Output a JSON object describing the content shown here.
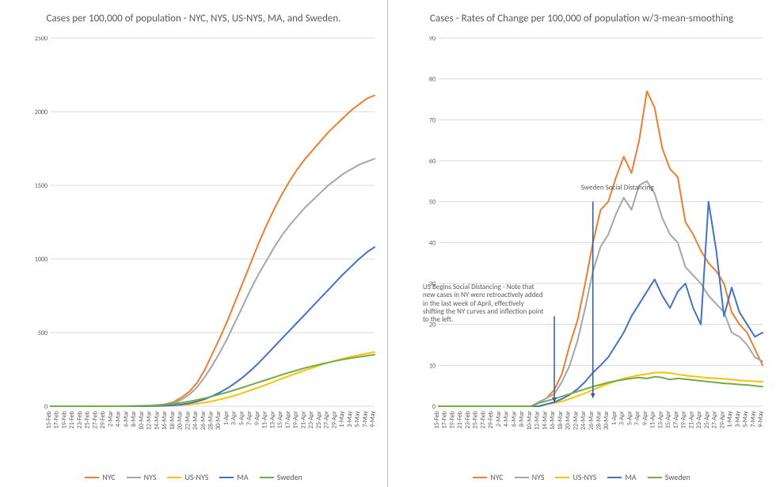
{
  "colors": {
    "NYC": "#ed7d31",
    "NYS": "#a6a6a6",
    "US-NYS": "#ffc000",
    "MA": "#4472c4",
    "Sweden": "#70ad47",
    "grid": "#d9d9d9",
    "text": "#595959",
    "bg": "#ffffff",
    "arrow": "#3b5b8f"
  },
  "legend_order": [
    "NYC",
    "NYS",
    "US-NYS",
    "MA",
    "Sweden"
  ],
  "dates": [
    "15-Feb",
    "17-Feb",
    "19-Feb",
    "21-Feb",
    "23-Feb",
    "25-Feb",
    "27-Feb",
    "29-Feb",
    "2-Mar",
    "4-Mar",
    "6-Mar",
    "8-Mar",
    "10-Mar",
    "12-Mar",
    "14-Mar",
    "16-Mar",
    "18-Mar",
    "20-Mar",
    "22-Mar",
    "24-Mar",
    "26-Mar",
    "28-Mar",
    "30-Mar",
    "1-Apr",
    "3-Apr",
    "5-Apr",
    "7-Apr",
    "9-Apr",
    "11-Apr",
    "13-Apr",
    "15-Apr",
    "17-Apr",
    "19-Apr",
    "21-Apr",
    "23-Apr",
    "25-Apr",
    "27-Apr",
    "29-Apr",
    "1-May",
    "3-May",
    "5-May",
    "7-May",
    "9-May"
  ],
  "left": {
    "title": "Cases per 100,000 of population - NYC, NYS, US-NYS, MA, and Sweden.",
    "ylim": [
      0,
      2500
    ],
    "ytick_step": 500,
    "series": {
      "NYC": [
        0,
        0,
        0,
        0,
        0,
        0,
        0,
        0,
        0,
        0,
        0,
        1,
        2,
        4,
        8,
        15,
        30,
        60,
        100,
        160,
        250,
        360,
        470,
        590,
        720,
        850,
        980,
        1110,
        1230,
        1340,
        1440,
        1530,
        1610,
        1680,
        1740,
        1800,
        1860,
        1910,
        1960,
        2010,
        2050,
        2090,
        2110
      ],
      "NYS": [
        0,
        0,
        0,
        0,
        0,
        0,
        0,
        0,
        0,
        0,
        0,
        0,
        1,
        3,
        6,
        12,
        22,
        45,
        80,
        130,
        200,
        280,
        370,
        470,
        580,
        690,
        800,
        900,
        990,
        1080,
        1160,
        1230,
        1290,
        1350,
        1400,
        1450,
        1500,
        1540,
        1580,
        1610,
        1640,
        1660,
        1680
      ],
      "US-NYS": [
        0,
        0,
        0,
        0,
        0,
        0,
        0,
        0,
        0,
        0,
        0,
        0,
        0,
        1,
        2,
        3,
        5,
        8,
        12,
        18,
        25,
        35,
        47,
        60,
        75,
        92,
        110,
        128,
        148,
        168,
        188,
        208,
        226,
        244,
        262,
        280,
        296,
        310,
        324,
        336,
        348,
        358,
        368
      ],
      "MA": [
        0,
        0,
        0,
        0,
        0,
        0,
        0,
        0,
        0,
        0,
        0,
        0,
        0,
        1,
        2,
        4,
        7,
        12,
        20,
        32,
        48,
        70,
        95,
        125,
        160,
        200,
        245,
        295,
        350,
        405,
        460,
        515,
        570,
        625,
        680,
        735,
        790,
        845,
        900,
        950,
        1000,
        1045,
        1080
      ],
      "Sweden": [
        0,
        0,
        0,
        0,
        0,
        0,
        0,
        0,
        0,
        0,
        1,
        2,
        3,
        5,
        8,
        12,
        17,
        24,
        33,
        43,
        55,
        68,
        82,
        97,
        113,
        129,
        146,
        163,
        180,
        197,
        214,
        230,
        245,
        260,
        273,
        285,
        297,
        308,
        318,
        327,
        335,
        343,
        350
      ]
    }
  },
  "right": {
    "title": "Cases - Rates of Change per 100,000 of population w/3-mean-smoothing",
    "ylim": [
      0,
      90
    ],
    "ytick_step": 10,
    "series": {
      "NYC": [
        0,
        0,
        0,
        0,
        0,
        0,
        0,
        0,
        0,
        0,
        0,
        0,
        0,
        1,
        2,
        4,
        8,
        15,
        21,
        30,
        40,
        48,
        50,
        56,
        61,
        57,
        65,
        77,
        73,
        63,
        58,
        56,
        45,
        42,
        38,
        35,
        33,
        30,
        23,
        20,
        18,
        14,
        10
      ],
      "NYS": [
        0,
        0,
        0,
        0,
        0,
        0,
        0,
        0,
        0,
        0,
        0,
        0,
        0,
        1,
        2,
        3,
        6,
        10,
        16,
        24,
        33,
        39,
        42,
        47,
        51,
        48,
        54,
        55,
        52,
        46,
        42,
        40,
        34,
        32,
        30,
        27,
        25,
        23,
        18,
        17,
        15,
        12,
        11
      ],
      "US-NYS": [
        0,
        0,
        0,
        0,
        0,
        0,
        0,
        0,
        0,
        0,
        0,
        0,
        0,
        0,
        0.5,
        0.8,
        1.2,
        1.8,
        2.5,
        3.2,
        4.0,
        4.8,
        5.5,
        6.2,
        6.8,
        7.2,
        7.6,
        7.9,
        8.2,
        8.3,
        8.1,
        7.8,
        7.5,
        7.3,
        7.1,
        6.9,
        6.8,
        6.7,
        6.5,
        6.3,
        6.2,
        6.1,
        6.0
      ],
      "MA": [
        0,
        0,
        0,
        0,
        0,
        0,
        0,
        0,
        0,
        0,
        0,
        0,
        0,
        0,
        0.5,
        1.0,
        1.8,
        2.8,
        4.2,
        6.0,
        8.2,
        10,
        12,
        15,
        18,
        22,
        25,
        28,
        31,
        27,
        24,
        28,
        30,
        24,
        20,
        50,
        38,
        22,
        29,
        23,
        20,
        17,
        18
      ],
      "Sweden": [
        0,
        0,
        0,
        0,
        0,
        0,
        0,
        0,
        0,
        0,
        0,
        0,
        0,
        0.8,
        1.3,
        1.8,
        2.4,
        3.0,
        3.6,
        4.2,
        4.8,
        5.3,
        5.8,
        6.2,
        6.5,
        6.8,
        7.0,
        6.8,
        7.2,
        7.0,
        6.5,
        6.8,
        6.6,
        6.4,
        6.2,
        6.0,
        5.8,
        5.6,
        5.5,
        5.3,
        5.2,
        5.0,
        4.8
      ]
    },
    "annotations": {
      "sweden": {
        "text": "Sweden Social Distancing",
        "date": "26-Mar",
        "y_to": 2
      },
      "us": {
        "text": "US Begins Social Distancing - Note that new cases in NY were retroactively added in the last week of April, effectively shifting the NY curves and inflection point to the left.",
        "date": "16-Mar",
        "y_to": 1
      }
    }
  }
}
